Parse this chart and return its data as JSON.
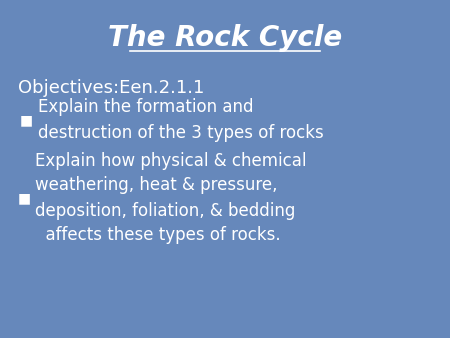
{
  "title": "The Rock Cycle",
  "objectives_label": "Objectives:Een.2.1.1",
  "bullet1_text": "Explain the formation and\ndestruction of the 3 types of rocks",
  "bullet2_text": "Explain how physical & chemical\nweathering, heat & pressure,\ndeposition, foliation, & bedding\n  affects these types of rocks.",
  "bg_color": "#6688bb",
  "text_color": "#ffffff",
  "title_color": "#ffffff",
  "title_fontsize": 20,
  "objectives_fontsize": 13,
  "bullet_fontsize": 12,
  "fig_width": 4.5,
  "fig_height": 3.38,
  "dpi": 100
}
